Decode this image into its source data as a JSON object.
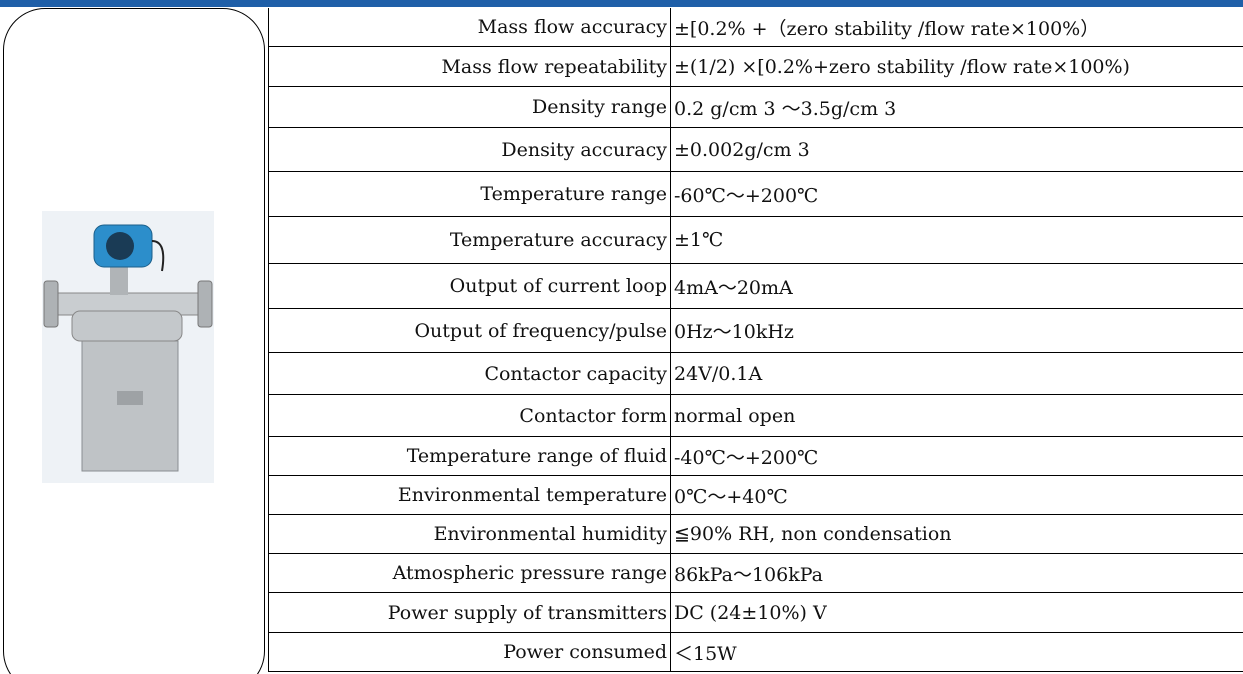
{
  "table": {
    "rows": [
      [
        "Mass flow accuracy",
        "±[0.2% +（zero stability /flow rate×100%）"
      ],
      [
        "Mass flow repeatability",
        "±(1/2) ×[0.2%+zero stability /flow rate×100%)"
      ],
      [
        "Density range",
        "0.2 g/cm 3 ～3.5g/cm 3"
      ],
      [
        "Density accuracy",
        "±0.002g/cm 3"
      ],
      [
        "Temperature range",
        "-60℃～+200℃"
      ],
      [
        "Temperature accuracy",
        "±1℃"
      ],
      [
        "Output of current loop",
        "4mA～20mA"
      ],
      [
        "Output of frequency/pulse",
        "0Hz～10kHz"
      ],
      [
        "Contactor capacity",
        "24V/0.1A"
      ],
      [
        "Contactor form",
        "normal open"
      ],
      [
        "Temperature range of fluid",
        "-40℃～+200℃"
      ],
      [
        "Environmental temperature",
        "0℃～+40℃"
      ],
      [
        "Environmental humidity",
        "≦90% RH, non condensation"
      ],
      [
        "Atmospheric pressure range",
        "86kPa～106kPa"
      ],
      [
        "Power supply of transmitters",
        "DC (24±10%) V"
      ],
      [
        "Power consumed",
        "＜15W"
      ]
    ]
  }
}
